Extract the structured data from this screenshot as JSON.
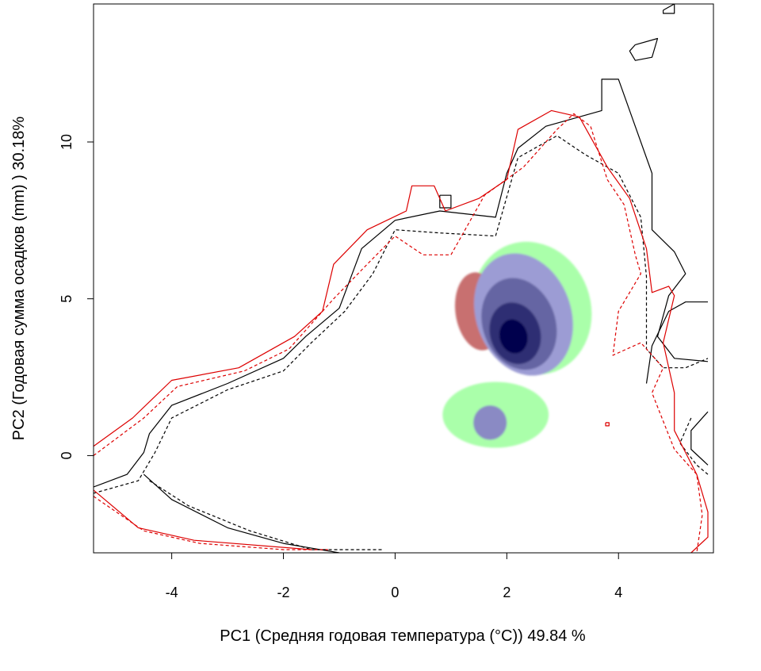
{
  "chart_data": {
    "type": "heatmap",
    "title": "",
    "xlabel": "PC1 (Средняя годовая температура (°C)) 49.84 %",
    "ylabel": "PC2 (Годовая сумма осадков  (mm) ) 30.18%",
    "xlim": [
      -5.4,
      5.7
    ],
    "ylim": [
      -3.1,
      14.4
    ],
    "xticks": [
      -4,
      -2,
      0,
      2,
      4
    ],
    "yticks": [
      0,
      5,
      10
    ],
    "xtick_labels": [
      "-4",
      "-2",
      "0",
      "2",
      "4"
    ],
    "ytick_labels": [
      "0",
      "5",
      "10"
    ],
    "grid": false,
    "colors": {
      "density_low": "#b8b8ec",
      "density_high": "#00004a",
      "expansion": "#aaffaa",
      "unfilling": "#c87070",
      "contour_black": "#000000",
      "contour_red": "#dd0000"
    },
    "series": [
      {
        "kind": "contour",
        "color": "#000000",
        "dash": "solid",
        "points": [
          [
            -5.4,
            -1.0
          ],
          [
            -4.8,
            -0.6
          ],
          [
            -4.5,
            0.1
          ],
          [
            -4.4,
            0.7
          ],
          [
            -4.0,
            1.6
          ],
          [
            -3.0,
            2.3
          ],
          [
            -2.0,
            3.1
          ],
          [
            -1.6,
            3.8
          ],
          [
            -1.0,
            4.7
          ],
          [
            -0.6,
            6.6
          ],
          [
            0.0,
            7.5
          ],
          [
            0.8,
            7.8
          ],
          [
            1.8,
            7.6
          ],
          [
            2.0,
            9.0
          ],
          [
            2.2,
            9.8
          ],
          [
            2.7,
            10.5
          ],
          [
            3.7,
            11.0
          ],
          [
            3.7,
            12.0
          ],
          [
            4.0,
            12.0
          ],
          [
            4.2,
            11.0
          ],
          [
            4.6,
            9.0
          ],
          [
            4.6,
            7.2
          ],
          [
            5.0,
            6.5
          ],
          [
            5.2,
            5.8
          ],
          [
            4.9,
            5.1
          ],
          [
            4.7,
            3.8
          ],
          [
            5.0,
            3.1
          ],
          [
            5.6,
            3.0
          ]
        ]
      },
      {
        "kind": "contour",
        "color": "#000000",
        "dash": "solid",
        "points": [
          [
            -4.5,
            -0.6
          ],
          [
            -4.0,
            -1.4
          ],
          [
            -3.0,
            -2.3
          ],
          [
            -2.0,
            -2.8
          ],
          [
            -1.0,
            -3.1
          ]
        ]
      },
      {
        "kind": "contour",
        "color": "#000000",
        "dash": "solid",
        "points": [
          [
            4.5,
            2.3
          ],
          [
            4.6,
            3.5
          ],
          [
            4.9,
            4.6
          ],
          [
            5.2,
            4.9
          ],
          [
            5.6,
            4.9
          ]
        ]
      },
      {
        "kind": "contour",
        "color": "#000000",
        "dash": "solid",
        "points": [
          [
            5.6,
            1.4
          ],
          [
            5.3,
            0.8
          ],
          [
            5.3,
            0.2
          ],
          [
            5.6,
            -0.3
          ]
        ]
      },
      {
        "kind": "contour",
        "color": "#000000",
        "dash": "solid",
        "points": [
          [
            4.3,
            13.1
          ],
          [
            4.7,
            13.3
          ],
          [
            4.6,
            12.7
          ],
          [
            4.3,
            12.6
          ],
          [
            4.2,
            12.9
          ],
          [
            4.3,
            13.1
          ]
        ]
      },
      {
        "kind": "contour",
        "color": "#000000",
        "dash": "solid",
        "points": [
          [
            4.8,
            14.2
          ],
          [
            5.0,
            14.4
          ],
          [
            5.0,
            14.1
          ],
          [
            4.8,
            14.1
          ],
          [
            4.8,
            14.2
          ]
        ]
      },
      {
        "kind": "contour",
        "color": "#000000",
        "dash": "solid",
        "points": [
          [
            0.8,
            8.3
          ],
          [
            1.0,
            8.3
          ],
          [
            1.0,
            7.9
          ],
          [
            0.8,
            7.9
          ],
          [
            0.8,
            8.3
          ]
        ]
      },
      {
        "kind": "contour",
        "color": "#000000",
        "dash": "dashed",
        "points": [
          [
            -5.4,
            -1.2
          ],
          [
            -4.6,
            -0.8
          ],
          [
            -4.3,
            0.1
          ],
          [
            -4.0,
            1.2
          ],
          [
            -3.0,
            2.1
          ],
          [
            -2.0,
            2.7
          ],
          [
            -1.5,
            3.6
          ],
          [
            -0.9,
            4.6
          ],
          [
            -0.4,
            5.8
          ],
          [
            0.0,
            7.2
          ],
          [
            0.8,
            7.1
          ],
          [
            1.8,
            7.0
          ],
          [
            2.2,
            9.5
          ],
          [
            2.9,
            10.2
          ],
          [
            3.4,
            9.6
          ],
          [
            4.0,
            9.0
          ],
          [
            4.4,
            7.6
          ],
          [
            4.5,
            5.7
          ],
          [
            4.5,
            3.4
          ],
          [
            4.8,
            2.8
          ],
          [
            5.2,
            2.8
          ],
          [
            5.6,
            3.1
          ]
        ]
      },
      {
        "kind": "contour",
        "color": "#000000",
        "dash": "dashed",
        "points": [
          [
            -4.4,
            -0.8
          ],
          [
            -3.7,
            -1.6
          ],
          [
            -2.6,
            -2.4
          ],
          [
            -1.5,
            -3.0
          ],
          [
            -0.2,
            -3.0
          ]
        ]
      },
      {
        "kind": "contour",
        "color": "#000000",
        "dash": "dashed",
        "points": [
          [
            5.3,
            1.2
          ],
          [
            5.1,
            0.4
          ],
          [
            5.4,
            -0.3
          ],
          [
            5.6,
            -0.6
          ]
        ]
      },
      {
        "kind": "contour",
        "color": "#dd0000",
        "dash": "solid",
        "points": [
          [
            -5.4,
            0.3
          ],
          [
            -4.7,
            1.2
          ],
          [
            -4.0,
            2.4
          ],
          [
            -2.8,
            2.8
          ],
          [
            -1.8,
            3.8
          ],
          [
            -1.3,
            4.6
          ],
          [
            -1.1,
            6.1
          ],
          [
            -0.5,
            7.2
          ],
          [
            0.2,
            7.8
          ],
          [
            0.3,
            8.6
          ],
          [
            0.7,
            8.6
          ],
          [
            0.9,
            7.8
          ],
          [
            1.5,
            8.2
          ],
          [
            2.0,
            8.8
          ],
          [
            2.2,
            10.4
          ],
          [
            2.8,
            11.0
          ],
          [
            3.3,
            10.8
          ],
          [
            3.8,
            9.2
          ],
          [
            4.2,
            8.2
          ],
          [
            4.5,
            6.6
          ],
          [
            4.6,
            5.2
          ],
          [
            4.9,
            5.4
          ],
          [
            5.0,
            5.1
          ],
          [
            4.8,
            3.6
          ],
          [
            5.0,
            2.0
          ],
          [
            5.0,
            0.8
          ],
          [
            5.4,
            -0.6
          ],
          [
            5.6,
            -1.8
          ],
          [
            5.6,
            -2.6
          ],
          [
            5.3,
            -3.1
          ]
        ]
      },
      {
        "kind": "contour",
        "color": "#dd0000",
        "dash": "solid",
        "points": [
          [
            -5.4,
            -1.1
          ],
          [
            -4.6,
            -2.3
          ],
          [
            -3.6,
            -2.7
          ],
          [
            -1.5,
            -3.0
          ]
        ]
      },
      {
        "kind": "contour",
        "color": "#dd0000",
        "dash": "solid",
        "points": [
          [
            3.77,
            1.05
          ],
          [
            3.83,
            1.05
          ],
          [
            3.83,
            0.95
          ],
          [
            3.77,
            0.95
          ],
          [
            3.77,
            1.05
          ]
        ]
      },
      {
        "kind": "contour",
        "color": "#dd0000",
        "dash": "dashed",
        "points": [
          [
            -5.4,
            0.0
          ],
          [
            -4.5,
            1.2
          ],
          [
            -3.9,
            2.2
          ],
          [
            -2.7,
            2.7
          ],
          [
            -1.9,
            3.4
          ],
          [
            -1.1,
            5.0
          ],
          [
            -0.5,
            6.1
          ],
          [
            0.0,
            7.0
          ],
          [
            0.5,
            6.4
          ],
          [
            1.0,
            6.4
          ],
          [
            1.6,
            8.3
          ],
          [
            2.3,
            9.2
          ],
          [
            2.9,
            10.4
          ],
          [
            3.2,
            10.9
          ],
          [
            3.5,
            10.5
          ],
          [
            3.8,
            8.8
          ],
          [
            4.1,
            8.0
          ],
          [
            4.3,
            6.4
          ],
          [
            4.4,
            5.8
          ],
          [
            4.0,
            4.6
          ],
          [
            3.9,
            3.2
          ],
          [
            4.4,
            3.6
          ],
          [
            4.8,
            2.8
          ],
          [
            4.6,
            2.0
          ],
          [
            5.0,
            0.2
          ],
          [
            5.4,
            -0.6
          ],
          [
            5.5,
            -1.9
          ],
          [
            5.4,
            -3.1
          ]
        ]
      },
      {
        "kind": "contour",
        "color": "#dd0000",
        "dash": "dashed",
        "points": [
          [
            -5.4,
            -1.3
          ],
          [
            -4.5,
            -2.4
          ],
          [
            -3.5,
            -2.8
          ],
          [
            -2.0,
            -3.0
          ],
          [
            -1.2,
            -3.0
          ]
        ]
      }
    ]
  }
}
